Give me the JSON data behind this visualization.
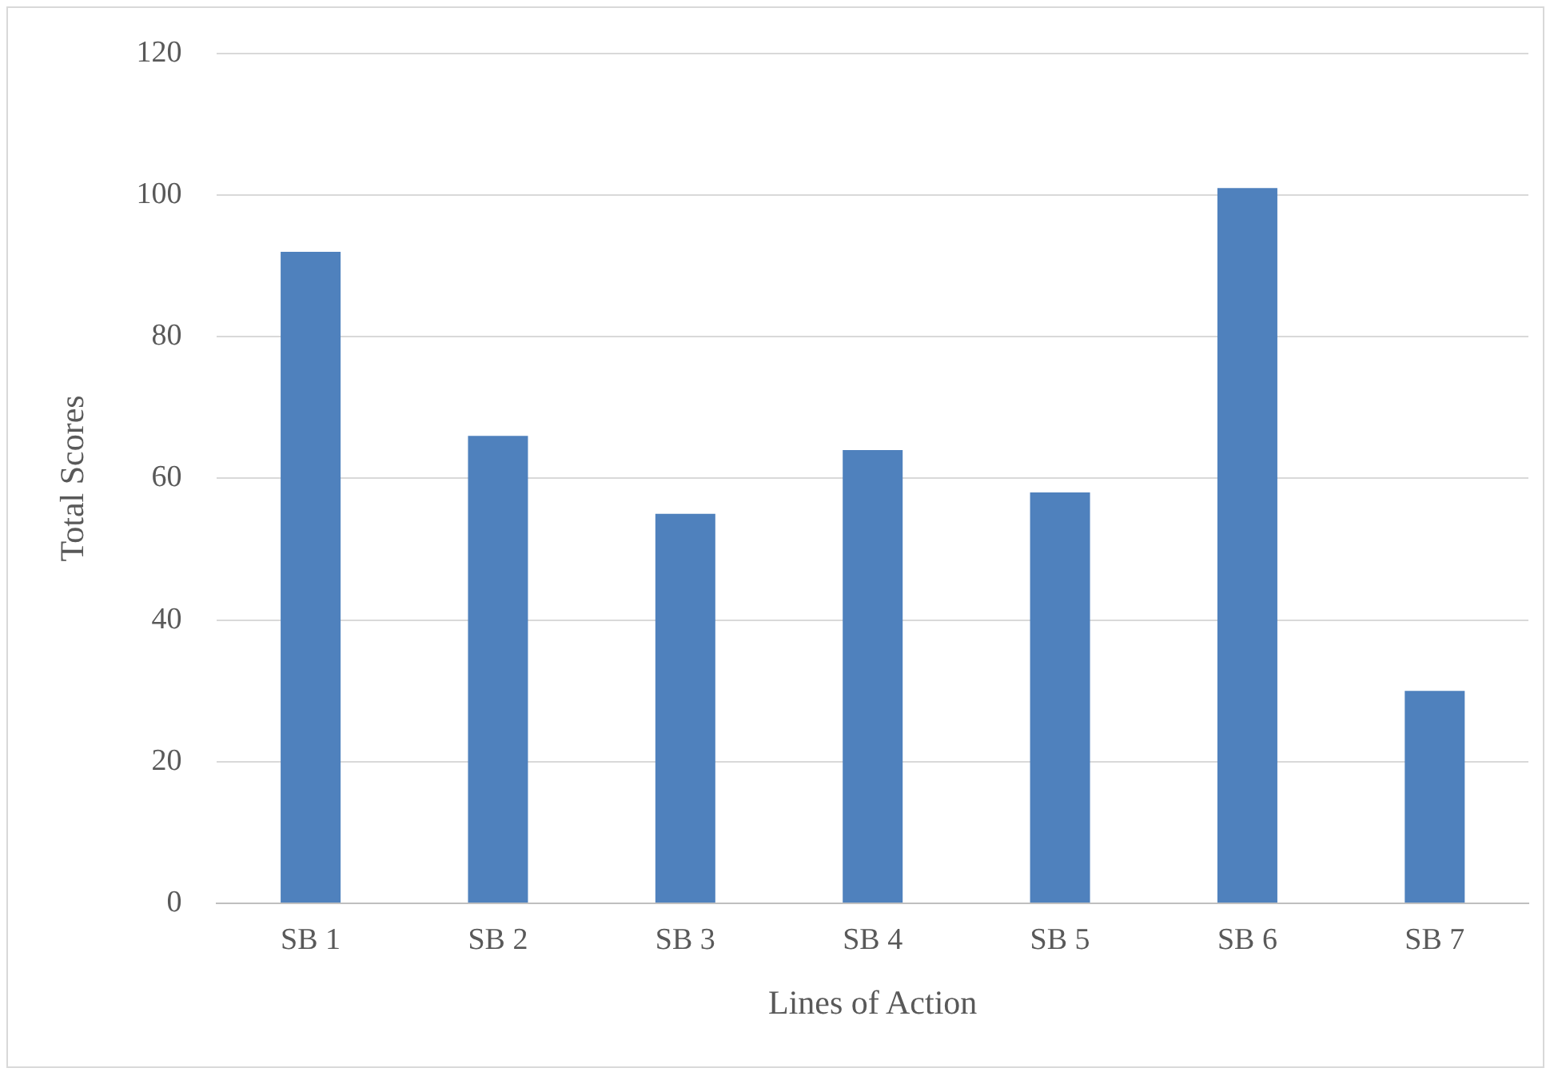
{
  "chart_data": {
    "type": "bar",
    "xlabel": "Lines of Action",
    "ylabel": "Total Scores",
    "categories": [
      "SB 1",
      "SB 2",
      "SB 3",
      "SB 4",
      "SB 5",
      "SB 6",
      "SB 7"
    ],
    "values": [
      92,
      66,
      55,
      64,
      58,
      101,
      30
    ],
    "color": "#4f81bd",
    "ylim": [
      0,
      120
    ],
    "yticks": [
      0,
      20,
      40,
      60,
      80,
      100,
      120
    ],
    "grid": "y",
    "legend": false
  }
}
